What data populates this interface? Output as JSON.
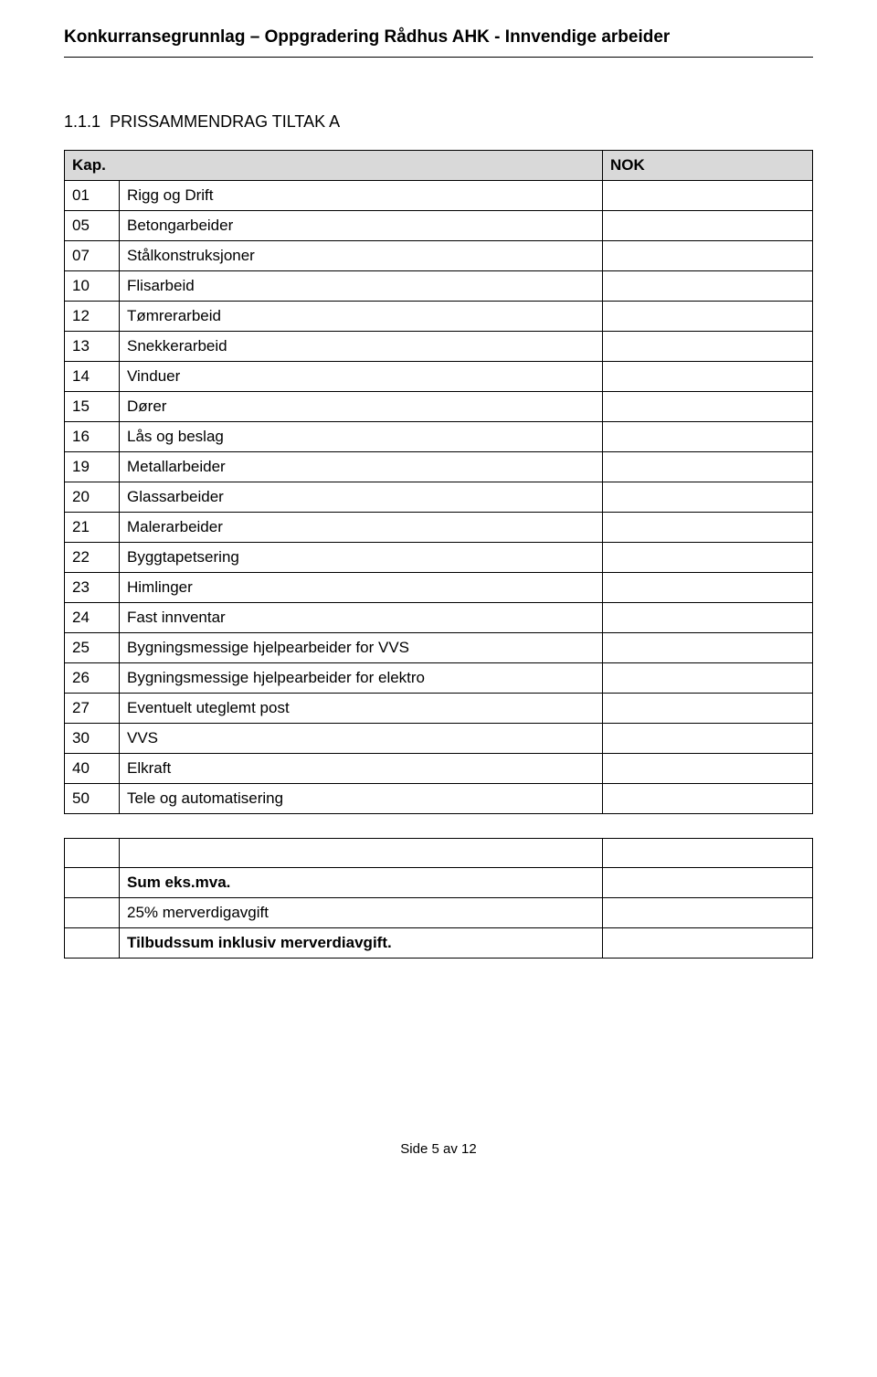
{
  "header": {
    "title": "Konkurransegrunnlag – Oppgradering Rådhus AHK - Innvendige arbeider"
  },
  "section": {
    "number": "1.1.1",
    "title": "PRISSAMMENDRAG TILTAK A"
  },
  "tableHeader": {
    "kap": "Kap.",
    "nok": "NOK"
  },
  "rows": [
    {
      "num": "01",
      "desc": "Rigg og Drift",
      "val": ""
    },
    {
      "num": "05",
      "desc": "Betongarbeider",
      "val": ""
    },
    {
      "num": "07",
      "desc": "Stålkonstruksjoner",
      "val": ""
    },
    {
      "num": "10",
      "desc": "Flisarbeid",
      "val": ""
    },
    {
      "num": "12",
      "desc": "Tømrerarbeid",
      "val": ""
    },
    {
      "num": "13",
      "desc": "Snekkerarbeid",
      "val": ""
    },
    {
      "num": "14",
      "desc": "Vinduer",
      "val": ""
    },
    {
      "num": "15",
      "desc": "Dører",
      "val": ""
    },
    {
      "num": "16",
      "desc": "Lås og beslag",
      "val": ""
    },
    {
      "num": "19",
      "desc": "Metallarbeider",
      "val": ""
    },
    {
      "num": "20",
      "desc": "Glassarbeider",
      "val": ""
    },
    {
      "num": "21",
      "desc": "Malerarbeider",
      "val": ""
    },
    {
      "num": "22",
      "desc": "Byggtapetsering",
      "val": ""
    },
    {
      "num": "23",
      "desc": "Himlinger",
      "val": ""
    },
    {
      "num": "24",
      "desc": "Fast innventar",
      "val": ""
    },
    {
      "num": "25",
      "desc": "Bygningsmessige hjelpearbeider for VVS",
      "val": ""
    },
    {
      "num": "26",
      "desc": "Bygningsmessige hjelpearbeider for elektro",
      "val": ""
    },
    {
      "num": "27",
      "desc": "Eventuelt uteglemt post",
      "val": ""
    },
    {
      "num": "30",
      "desc": "VVS",
      "val": ""
    },
    {
      "num": "40",
      "desc": "Elkraft",
      "val": ""
    },
    {
      "num": "50",
      "desc": "Tele og automatisering",
      "val": ""
    }
  ],
  "summary": {
    "blankRow": {
      "num": "",
      "desc": "",
      "val": ""
    },
    "sumLabel": "Sum eks.mva.",
    "vatLabel": "25% merverdigavgift",
    "totalLabel": "Tilbudssum inklusiv merverdiavgift.",
    "sumVal": "",
    "vatVal": "",
    "totalVal": ""
  },
  "footer": {
    "pageText": "Side 5 av 12"
  },
  "style": {
    "headerBg": "#d9d9d9",
    "borderColor": "#000000",
    "textColor": "#000000",
    "bodyBg": "#ffffff",
    "font": "Arial",
    "titleFontSize": 19,
    "bodyFontSize": 17,
    "pageWidth": 960,
    "pageHeight": 1507
  }
}
